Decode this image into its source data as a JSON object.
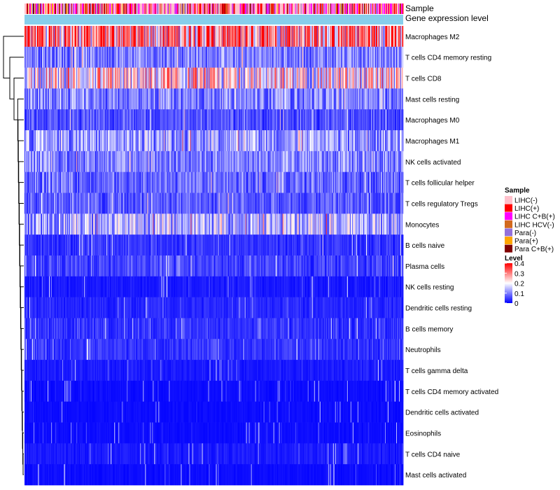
{
  "chart_data": {
    "type": "heatmap",
    "title": "",
    "annotation_rows": [
      "Sample",
      "Gene expression level"
    ],
    "rows": [
      "Macrophages M2",
      "T cells CD4 memory resting",
      "T cells CD8",
      "Mast cells resting",
      "Macrophages M0",
      "Macrophages M1",
      "NK cells activated",
      "T cells follicular helper",
      "T cells regulatory  Tregs",
      "Monocytes",
      "B cells naive",
      "Plasma cells",
      "NK cells resting",
      "Dendritic cells resting",
      "B cells memory",
      "Neutrophils",
      "T cells gamma delta",
      "T cells CD4 memory activated",
      "Dendritic cells activated",
      "Eosinophils",
      "T cells CD4 naive",
      "Mast cells activated"
    ],
    "row_mean_level": [
      0.3,
      0.1,
      0.2,
      0.1,
      0.06,
      0.12,
      0.1,
      0.08,
      0.07,
      0.14,
      0.04,
      0.05,
      0.02,
      0.03,
      0.04,
      0.04,
      0.02,
      0.01,
      0.01,
      0.01,
      0.02,
      0.01
    ],
    "sample_legend": {
      "title": "Sample",
      "items": [
        {
          "label": "LIHC(-)",
          "color": "#ffc0cb"
        },
        {
          "label": "LIHC(+)",
          "color": "#ff0000"
        },
        {
          "label": "LIHC C+B(+)",
          "color": "#ff00ff"
        },
        {
          "label": "LIHC HCV(-)",
          "color": "#d2691e"
        },
        {
          "label": "Para(-)",
          "color": "#9370db"
        },
        {
          "label": "Para(+)",
          "color": "#ffa500"
        },
        {
          "label": "Para C+B(+)",
          "color": "#800000"
        }
      ]
    },
    "level_legend": {
      "title": "Level",
      "ticks": [
        "0.4",
        "0.3",
        "0.2",
        "0.1",
        "0"
      ],
      "range": [
        0,
        0.4
      ],
      "colors": [
        "#0000ff",
        "#ffffff",
        "#ff0000"
      ]
    },
    "gene_expression_color": "#87ceeb",
    "columns": 540
  }
}
